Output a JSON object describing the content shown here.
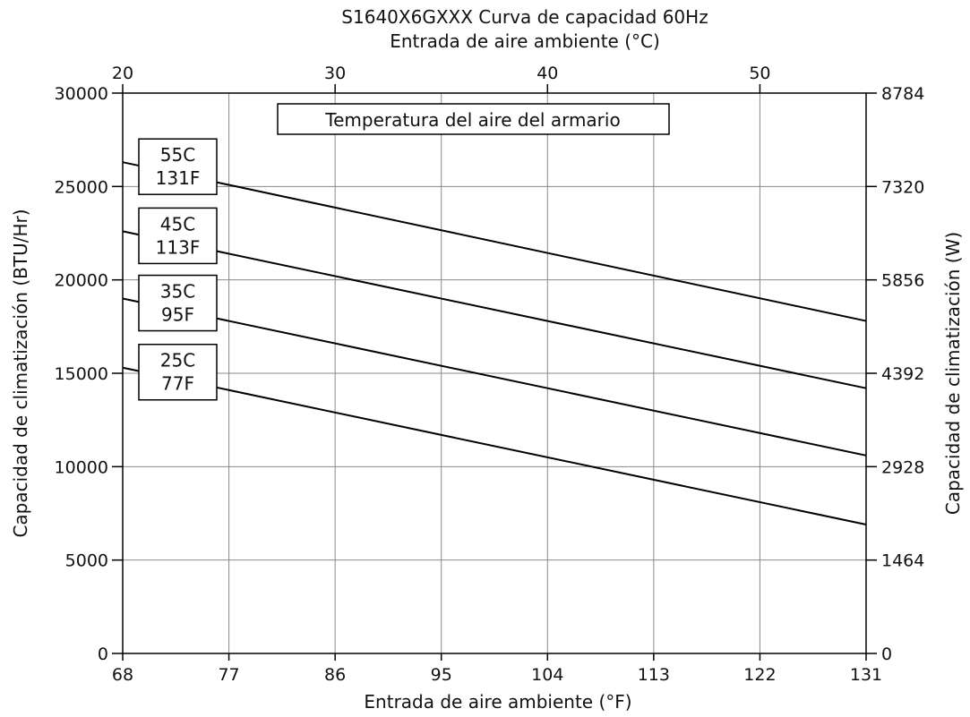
{
  "chart_data": {
    "type": "line",
    "title": "S1640X6GXXX Curva de capacidad 60Hz",
    "x_top_label": "Entrada de aire ambiente (°C)",
    "x_top_ticks": [
      20,
      30,
      40,
      50
    ],
    "xlabel": "Entrada de aire ambiente (°F)",
    "x_ticks": [
      68,
      77,
      86,
      95,
      104,
      113,
      122,
      131
    ],
    "xlim": [
      68,
      131
    ],
    "ylabel_left": "Capacidad de climatización (BTU/Hr)",
    "y_ticks": [
      0,
      5000,
      10000,
      15000,
      20000,
      25000,
      30000
    ],
    "ylim": [
      0,
      30000
    ],
    "ylabel_right": "Capacidad de climatización (W)",
    "y_right_ticks": [
      0,
      1464,
      2928,
      4392,
      5856,
      7320,
      8784
    ],
    "legend_title": "Temperatura del aire del armario",
    "grid": true,
    "series": [
      {
        "label_lines": [
          "55C",
          "131F"
        ],
        "x": [
          68,
          131
        ],
        "y": [
          26300,
          17800
        ]
      },
      {
        "label_lines": [
          "45C",
          "113F"
        ],
        "x": [
          68,
          131
        ],
        "y": [
          22600,
          14200
        ]
      },
      {
        "label_lines": [
          "35C",
          "95F"
        ],
        "x": [
          68,
          131
        ],
        "y": [
          19000,
          10600
        ]
      },
      {
        "label_lines": [
          "25C",
          "77F"
        ],
        "x": [
          68,
          131
        ],
        "y": [
          15300,
          6900
        ]
      }
    ]
  }
}
